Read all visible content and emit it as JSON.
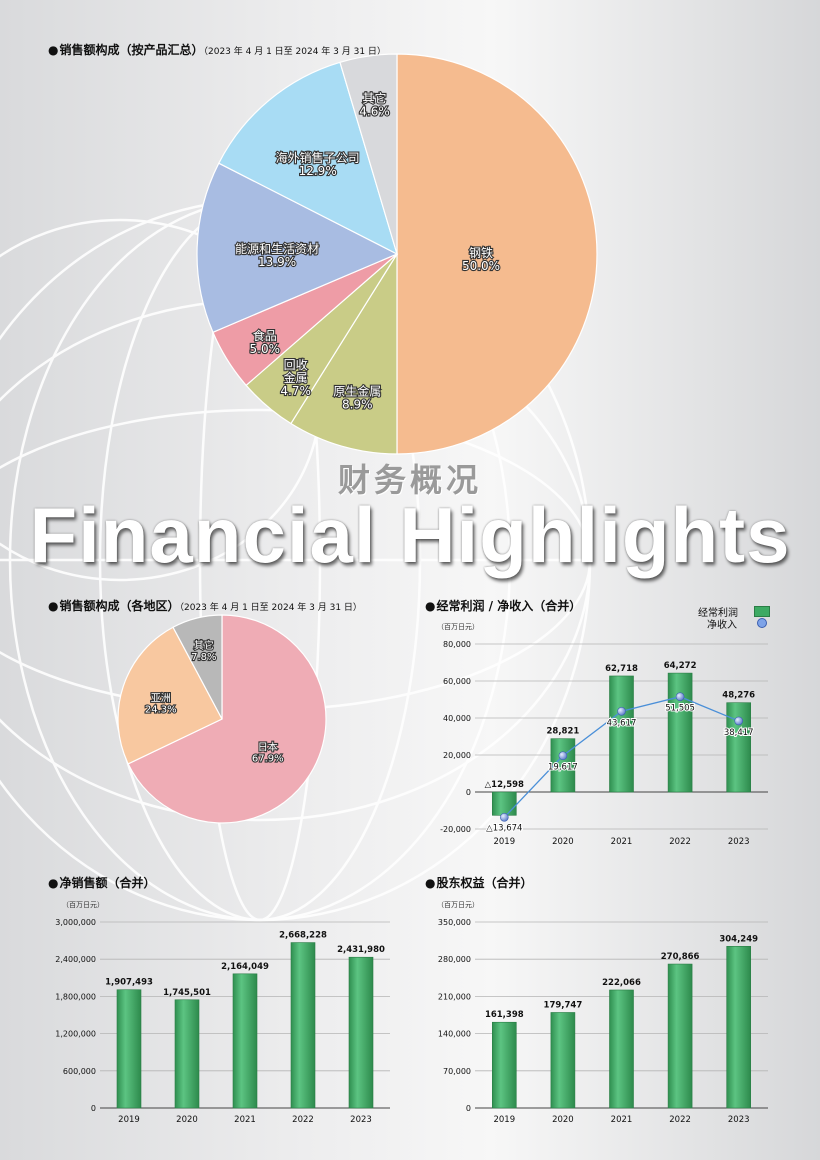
{
  "hero": {
    "title_cn": "财务概况",
    "title_en": "Financial Highlights"
  },
  "sections": {
    "product": {
      "title": "销售额构成（按产品汇总）",
      "period": "（2023 年 4 月 1 日至 2024 年 3 月 31 日）"
    },
    "region": {
      "title": "销售额构成（各地区）",
      "period": "（2023 年 4 月 1 日至 2024 年 3 月 31 日）"
    },
    "profit": {
      "title": "经常利润 / 净收入（合并）",
      "unit": "（百万日元）"
    },
    "sales": {
      "title": "净销售额（合并）",
      "unit": "（百万日元）"
    },
    "equity": {
      "title": "股东权益（合并）",
      "unit": "（百万日元）"
    }
  },
  "chart_data": [
    {
      "id": "product",
      "type": "pie",
      "slices": [
        {
          "label": "钢铁",
          "pct_label": "50.0%",
          "value": 50.0,
          "color": "#f5bb8f"
        },
        {
          "label": "原生金属",
          "pct_label": "8.9%",
          "value": 8.9,
          "color": "#c9cc87"
        },
        {
          "label": "回收\n金属",
          "pct_label": "4.7%",
          "value": 4.7,
          "color": "#c9cc87"
        },
        {
          "label": "食品",
          "pct_label": "5.0%",
          "value": 5.0,
          "color": "#ee9ca6"
        },
        {
          "label": "能源和生活资材",
          "pct_label": "13.9%",
          "value": 13.9,
          "color": "#a8bce2"
        },
        {
          "label": "海外销售子公司",
          "pct_label": "12.9%",
          "value": 12.9,
          "color": "#a8dcf4"
        },
        {
          "label": "其它",
          "pct_label": "4.6%",
          "value": 4.6,
          "color": "#d8d9dc"
        }
      ]
    },
    {
      "id": "region",
      "type": "pie",
      "slices": [
        {
          "label": "日本",
          "pct_label": "67.9%",
          "value": 67.9,
          "color": "#efacb5"
        },
        {
          "label": "亚洲",
          "pct_label": "24.3%",
          "value": 24.3,
          "color": "#f8c8a0"
        },
        {
          "label": "其它",
          "pct_label": "7.8%",
          "value": 7.8,
          "color": "#b8b8b8"
        }
      ]
    },
    {
      "id": "profit",
      "type": "bar",
      "categories": [
        "2019",
        "2020",
        "2021",
        "2022",
        "2023"
      ],
      "series": [
        {
          "name": "经常利润",
          "values": [
            -12598,
            28821,
            62718,
            64272,
            48276
          ],
          "labels": [
            "△12,598",
            "28,821",
            "62,718",
            "64,272",
            "48,276"
          ]
        },
        {
          "name": "净收入",
          "values": [
            -13674,
            19617,
            43617,
            51505,
            38417
          ],
          "labels": [
            "△13,674",
            "19,617",
            "43,617",
            "51,505",
            "38,417"
          ]
        }
      ],
      "yticks": [
        -20000,
        0,
        20000,
        40000,
        60000,
        80000
      ],
      "ytick_labels": [
        "-20,000",
        "0",
        "20,000",
        "40,000",
        "60,000",
        "80,000"
      ],
      "ylim": [
        -20000,
        80000
      ]
    },
    {
      "id": "sales",
      "type": "bar",
      "categories": [
        "2019",
        "2020",
        "2021",
        "2022",
        "2023"
      ],
      "values": [
        1907493,
        1745501,
        2164049,
        2668228,
        2431980
      ],
      "labels": [
        "1,907,493",
        "1,745,501",
        "2,164,049",
        "2,668,228",
        "2,431,980"
      ],
      "yticks": [
        0,
        600000,
        1200000,
        1800000,
        2400000,
        3000000
      ],
      "ytick_labels": [
        "0",
        "600,000",
        "1,200,000",
        "1,800,000",
        "2,400,000",
        "3,000,000"
      ],
      "ylim": [
        0,
        3000000
      ]
    },
    {
      "id": "equity",
      "type": "bar",
      "categories": [
        "2019",
        "2020",
        "2021",
        "2022",
        "2023"
      ],
      "values": [
        161398,
        179747,
        222066,
        270866,
        304249
      ],
      "labels": [
        "161,398",
        "179,747",
        "222,066",
        "270,866",
        "304,249"
      ],
      "yticks": [
        0,
        70000,
        140000,
        210000,
        280000,
        350000
      ],
      "ytick_labels": [
        "0",
        "70,000",
        "140,000",
        "210,000",
        "280,000",
        "350,000"
      ],
      "ylim": [
        0,
        350000
      ]
    }
  ],
  "colors": {
    "bar": "#3daa63",
    "line": "#4a8fd8",
    "point": "#7ea3e8"
  }
}
